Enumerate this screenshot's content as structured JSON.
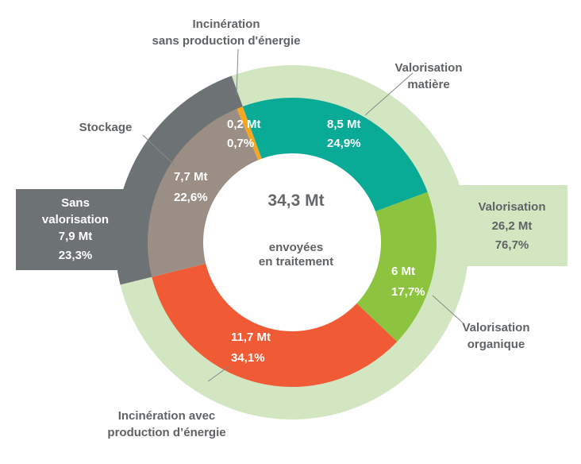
{
  "chart_data": {
    "type": "pie",
    "variant": "nested-donut",
    "center": {
      "total": "34,3 Mt",
      "caption_line1": "envoyées",
      "caption_line2": "en traitement"
    },
    "inner": [
      {
        "name": "Incinération sans production d'énergie",
        "name_line1": "Incinération",
        "name_line2": "sans production d'énergie",
        "value": 0.2,
        "value_label": "0,2 Mt",
        "percent": 0.7,
        "percent_label": "0,7%",
        "color": "#f5a623"
      },
      {
        "name": "Valorisation matière",
        "name_line1": "Valorisation",
        "name_line2": "matière",
        "value": 8.5,
        "value_label": "8,5 Mt",
        "percent": 24.9,
        "percent_label": "24,9%",
        "color": "#0aab96"
      },
      {
        "name": "Valorisation organique",
        "name_line1": "Valorisation",
        "name_line2": "organique",
        "value": 6,
        "value_label": "6 Mt",
        "percent": 17.7,
        "percent_label": "17,7%",
        "color": "#8cc43f"
      },
      {
        "name": "Incinération avec production d’énergie",
        "name_line1": "Incinération avec",
        "name_line2": "production d’énergie",
        "value": 11.7,
        "value_label": "11,7 Mt",
        "percent": 34.1,
        "percent_label": "34,1%",
        "color": "#f05a34"
      },
      {
        "name": "Stockage",
        "name_line1": "Stockage",
        "name_line2": "",
        "value": 7.7,
        "value_label": "7,7 Mt",
        "percent": 22.6,
        "percent_label": "22,6%",
        "color": "#9b8e84"
      }
    ],
    "outer": [
      {
        "name": "Valorisation",
        "value": 26.2,
        "value_label": "26,2 Mt",
        "percent": 76.7,
        "percent_label": "76,7%",
        "color": "#d3e6c2"
      },
      {
        "name_line1": "Sans",
        "name_line2": "valorisation",
        "value": 7.9,
        "value_label": "7,9 Mt",
        "percent": 23.3,
        "percent_label": "23,3%",
        "color": "#6d7275"
      }
    ]
  }
}
